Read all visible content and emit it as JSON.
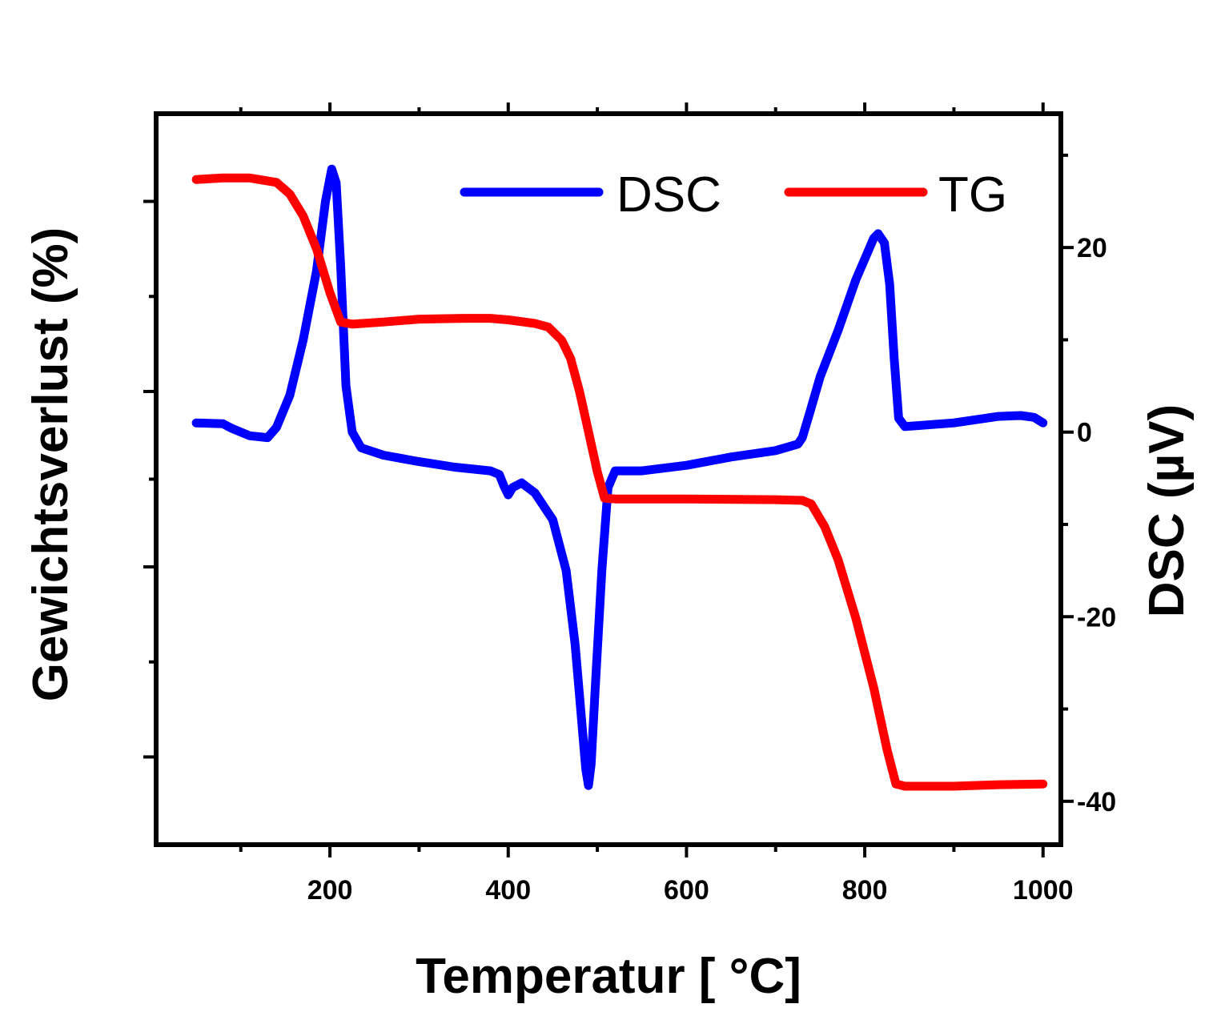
{
  "chart_data": {
    "type": "line",
    "xlabel": "Temperatur [ °C]",
    "ylabel_left": "Gewichtsverlust (%)",
    "ylabel_right": "DSC (µV)",
    "xlim": [
      5,
      1020
    ],
    "x_ticks": [
      200,
      400,
      600,
      800,
      1000
    ],
    "y_right_lim": [
      -44.7,
      34.5
    ],
    "y_right_ticks": [
      -40,
      -20,
      0,
      20
    ],
    "y_left_lim": [
      0,
      100
    ],
    "legend_position": "top-right",
    "grid": false,
    "series": [
      {
        "name": "DSC",
        "color": "#0000ff",
        "axis": "right",
        "points": [
          [
            50,
            1.0
          ],
          [
            80,
            0.9
          ],
          [
            90,
            0.4
          ],
          [
            110,
            -0.4
          ],
          [
            130,
            -0.6
          ],
          [
            140,
            0.5
          ],
          [
            155,
            4.0
          ],
          [
            170,
            10
          ],
          [
            185,
            17.5
          ],
          [
            195,
            25
          ],
          [
            202,
            28.5
          ],
          [
            207,
            27
          ],
          [
            212,
            18
          ],
          [
            218,
            5
          ],
          [
            225,
            0
          ],
          [
            235,
            -1.7
          ],
          [
            260,
            -2.5
          ],
          [
            300,
            -3.2
          ],
          [
            340,
            -3.8
          ],
          [
            380,
            -4.2
          ],
          [
            390,
            -4.6
          ],
          [
            395,
            -5.8
          ],
          [
            400,
            -6.8
          ],
          [
            405,
            -6.0
          ],
          [
            415,
            -5.5
          ],
          [
            430,
            -6.6
          ],
          [
            450,
            -9.5
          ],
          [
            465,
            -15
          ],
          [
            475,
            -23
          ],
          [
            483,
            -32
          ],
          [
            487,
            -36.5
          ],
          [
            490,
            -38.3
          ],
          [
            493,
            -36
          ],
          [
            498,
            -27
          ],
          [
            505,
            -15
          ],
          [
            512,
            -6
          ],
          [
            520,
            -4.2
          ],
          [
            550,
            -4.2
          ],
          [
            600,
            -3.6
          ],
          [
            650,
            -2.7
          ],
          [
            700,
            -2.0
          ],
          [
            725,
            -1.3
          ],
          [
            730,
            -0.6
          ],
          [
            738,
            2.0
          ],
          [
            750,
            6.0
          ],
          [
            770,
            11.0
          ],
          [
            790,
            16.5
          ],
          [
            810,
            21.0
          ],
          [
            815,
            21.5
          ],
          [
            822,
            20.5
          ],
          [
            828,
            16
          ],
          [
            833,
            8
          ],
          [
            838,
            1.5
          ],
          [
            845,
            0.6
          ],
          [
            900,
            1.0
          ],
          [
            950,
            1.7
          ],
          [
            975,
            1.8
          ],
          [
            990,
            1.6
          ],
          [
            1000,
            1.0
          ]
        ]
      },
      {
        "name": "TG",
        "color": "#ff0000",
        "axis": "left",
        "points": [
          [
            50,
            91.0
          ],
          [
            80,
            91.2
          ],
          [
            110,
            91.2
          ],
          [
            140,
            90.6
          ],
          [
            155,
            89.0
          ],
          [
            170,
            86.0
          ],
          [
            185,
            81.5
          ],
          [
            200,
            75.5
          ],
          [
            212,
            71.5
          ],
          [
            225,
            71.2
          ],
          [
            260,
            71.5
          ],
          [
            300,
            71.9
          ],
          [
            350,
            72.0
          ],
          [
            380,
            72.0
          ],
          [
            400,
            71.8
          ],
          [
            430,
            71.3
          ],
          [
            445,
            70.8
          ],
          [
            460,
            69.0
          ],
          [
            470,
            66.5
          ],
          [
            480,
            62.0
          ],
          [
            490,
            56.5
          ],
          [
            500,
            51.0
          ],
          [
            508,
            47.4
          ],
          [
            520,
            47.3
          ],
          [
            600,
            47.3
          ],
          [
            700,
            47.2
          ],
          [
            730,
            47.1
          ],
          [
            740,
            46.6
          ],
          [
            755,
            43.5
          ],
          [
            770,
            39.0
          ],
          [
            790,
            31.0
          ],
          [
            810,
            21.5
          ],
          [
            825,
            13.0
          ],
          [
            835,
            8.3
          ],
          [
            845,
            8.0
          ],
          [
            900,
            8.0
          ],
          [
            950,
            8.2
          ],
          [
            1000,
            8.3
          ]
        ]
      }
    ]
  }
}
